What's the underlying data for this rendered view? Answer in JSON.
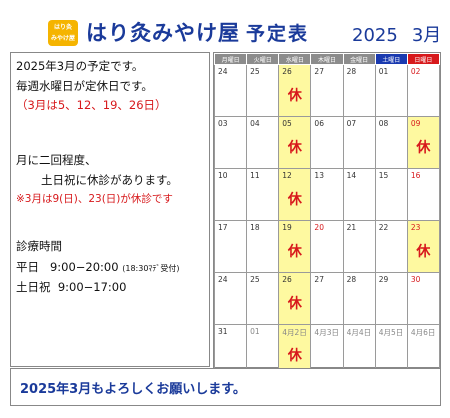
{
  "header": {
    "logo_line1": "はり灸",
    "logo_line2": "みやけ屋",
    "shop_name": "はり灸みやけ屋",
    "title": "予定表",
    "year": "2025",
    "month": "3月"
  },
  "info": {
    "line1": "2025年3月の予定です。",
    "line2": "毎週水曜日が定休日です。",
    "line3": "（3月は5、12、19、26日）",
    "line4": "月に二回程度、",
    "line5": "土日祝に休診があります。",
    "line6": "※3月は9(日)、23(日)が休診です",
    "hours_title": "診療時間",
    "weekday_label": "平日",
    "weekday_hours": "9:00−20:00",
    "weekday_note": "(18:30ﾏﾃﾞ受付)",
    "weekend_label": "土日祝",
    "weekend_hours": "9:00−17:00"
  },
  "calendar": {
    "weekday_headers": [
      "月曜日",
      "火曜日",
      "水曜日",
      "木曜日",
      "金曜日",
      "土曜日",
      "日曜日"
    ],
    "header_colors": [
      "#8c8c8c",
      "#8c8c8c",
      "#8c8c8c",
      "#8c8c8c",
      "#8c8c8c",
      "#1a3ab0",
      "#d7191c"
    ],
    "closed_label": "休",
    "weeks": [
      [
        {
          "d": "24"
        },
        {
          "d": "25"
        },
        {
          "d": "26",
          "closed": true
        },
        {
          "d": "27"
        },
        {
          "d": "28"
        },
        {
          "d": "01"
        },
        {
          "d": "02",
          "sun": true
        }
      ],
      [
        {
          "d": "03"
        },
        {
          "d": "04"
        },
        {
          "d": "05",
          "closed": true
        },
        {
          "d": "06"
        },
        {
          "d": "07"
        },
        {
          "d": "08"
        },
        {
          "d": "09",
          "sun": true,
          "closed": true
        }
      ],
      [
        {
          "d": "10"
        },
        {
          "d": "11"
        },
        {
          "d": "12",
          "closed": true
        },
        {
          "d": "13"
        },
        {
          "d": "14"
        },
        {
          "d": "15"
        },
        {
          "d": "16",
          "sun": true
        }
      ],
      [
        {
          "d": "17"
        },
        {
          "d": "18"
        },
        {
          "d": "19",
          "closed": true
        },
        {
          "d": "20",
          "sun": true
        },
        {
          "d": "21"
        },
        {
          "d": "22"
        },
        {
          "d": "23",
          "sun": true,
          "closed": true
        }
      ],
      [
        {
          "d": "24"
        },
        {
          "d": "25"
        },
        {
          "d": "26",
          "closed": true
        },
        {
          "d": "27"
        },
        {
          "d": "28"
        },
        {
          "d": "29"
        },
        {
          "d": "30",
          "sun": true
        }
      ],
      [
        {
          "d": "31"
        },
        {
          "d": "01",
          "gray": true
        },
        {
          "d": "4月2日",
          "gray": true,
          "closed": true
        },
        {
          "d": "4月3日",
          "gray": true
        },
        {
          "d": "4月4日",
          "gray": true
        },
        {
          "d": "4月5日",
          "gray": true
        },
        {
          "d": "4月6日",
          "gray": true
        }
      ]
    ]
  },
  "footer": {
    "message": "2025年3月もよろしくお願いします。"
  }
}
